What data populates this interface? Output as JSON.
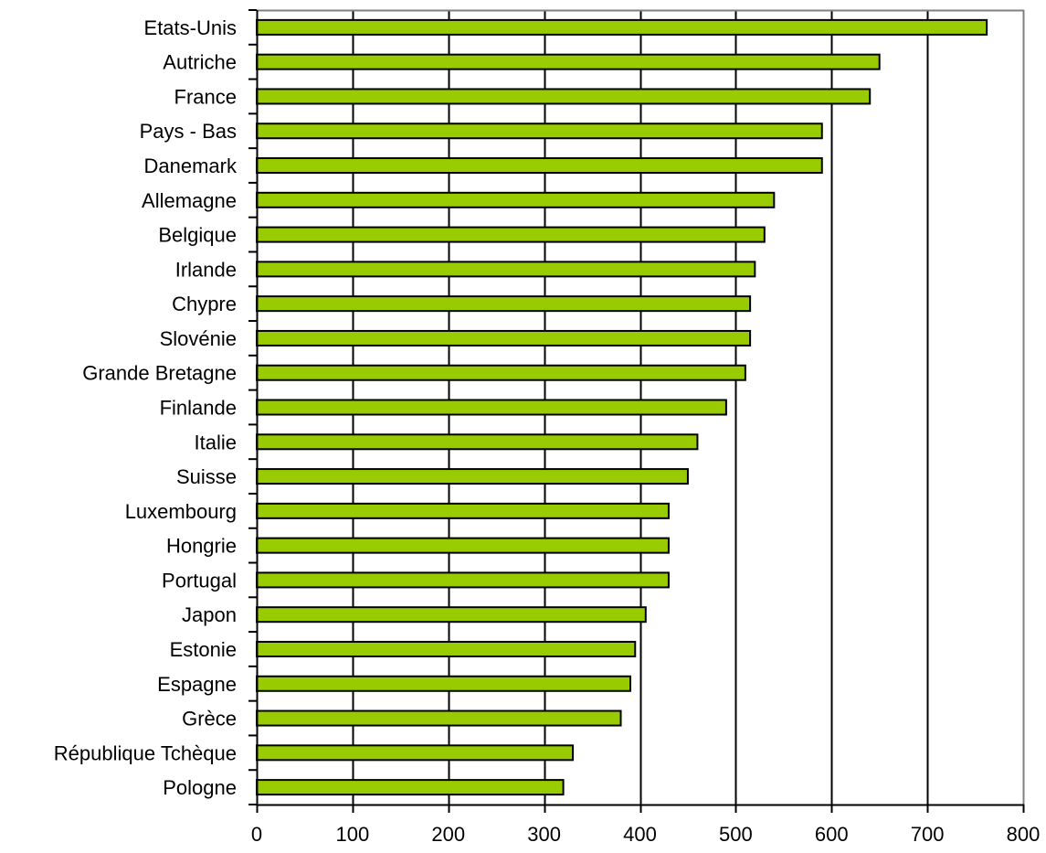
{
  "chart_data": {
    "type": "bar",
    "orientation": "horizontal",
    "title": "",
    "xlabel": "",
    "ylabel": "",
    "categories": [
      "Etats-Unis",
      "Autriche",
      "France",
      "Pays - Bas",
      "Danemark",
      "Allemagne",
      "Belgique",
      "Irlande",
      "Chypre",
      "Slovénie",
      "Grande Bretagne",
      "Finlande",
      "Italie",
      "Suisse",
      "Luxembourg",
      "Hongrie",
      "Portugal",
      "Japon",
      "Estonie",
      "Espagne",
      "Grèce",
      "République Tchèque",
      "Pologne"
    ],
    "values": [
      762,
      650,
      640,
      590,
      590,
      540,
      530,
      520,
      515,
      515,
      510,
      490,
      460,
      450,
      430,
      430,
      430,
      406,
      395,
      390,
      380,
      330,
      320
    ],
    "xlim": [
      0,
      800
    ],
    "xticks": [
      0,
      100,
      200,
      300,
      400,
      500,
      600,
      700,
      800
    ],
    "grid": "vertical",
    "legend": "none",
    "bar_color": "#99cc00",
    "bar_edge_color": "#000000",
    "grid_color": "#000000",
    "frame_color": "#808080"
  }
}
